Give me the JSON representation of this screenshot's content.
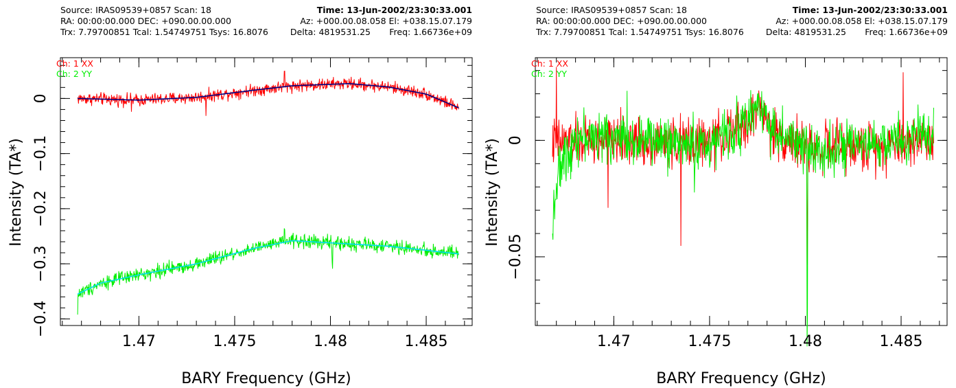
{
  "panels": [
    {
      "header": {
        "source": "Source: IRAS09539+0857 Scan: 18",
        "time": "Time: 13-Jun-2002/23:30:33.001",
        "radec": "RA: 00:00:00.000 DEC: +090.00.00.000",
        "azel": "Az: +000.00.08.058 El: +038.15.07.179",
        "trx": "Trx: 7.79700851 Tcal: 1.54749751 Tsys: 16.8076",
        "delta": "Delta: 4819531.25",
        "freq": "Freq: 1.66736e+09"
      },
      "chart_data": {
        "type": "line",
        "xlabel": "BARY Frequency (GHz)",
        "ylabel": "Intensity (TA*)",
        "xlim": [
          1.4659,
          1.4874
        ],
        "ylim": [
          -0.412,
          0.074
        ],
        "xticks": [
          1.47,
          1.475,
          1.48,
          1.485
        ],
        "xtick_labels": [
          "1.47",
          "1.475",
          "1.48",
          "1.485"
        ],
        "yticks": [
          0,
          -0.1,
          -0.2,
          -0.3,
          -0.4
        ],
        "ytick_labels": [
          "0",
          "−0.1",
          "−0.2",
          "−0.3",
          "−0.4"
        ],
        "legend": [
          "Ch: 1 XX",
          "Ch: 2 YY"
        ],
        "legend_position": "top-left",
        "series": [
          {
            "name": "Ch: 1 XX",
            "color": "#ff0000",
            "x_range": [
              1.4668,
              1.4867
            ],
            "baseline": [
              [
                1.4668,
                0.0
              ],
              [
                1.47,
                -0.003
              ],
              [
                1.473,
                0.002
              ],
              [
                1.476,
                0.015
              ],
              [
                1.478,
                0.023
              ],
              [
                1.481,
                0.027
              ],
              [
                1.483,
                0.021
              ],
              [
                1.485,
                0.008
              ],
              [
                1.4867,
                -0.017
              ]
            ],
            "noise": 0.008,
            "features": [
              {
                "x": 1.4776,
                "dy": 0.025
              },
              {
                "x": 1.4735,
                "dy": -0.032
              },
              {
                "x": 1.4696,
                "dy": -0.022
              }
            ]
          },
          {
            "name": "Ch: 2 YY",
            "color": "#00ee00",
            "x_range": [
              1.4668,
              1.4867
            ],
            "baseline": [
              [
                1.4668,
                -0.355
              ],
              [
                1.468,
                -0.335
              ],
              [
                1.47,
                -0.32
              ],
              [
                1.473,
                -0.3
              ],
              [
                1.476,
                -0.272
              ],
              [
                1.478,
                -0.258
              ],
              [
                1.48,
                -0.262
              ],
              [
                1.483,
                -0.268
              ],
              [
                1.4867,
                -0.282
              ]
            ],
            "noise": 0.009,
            "features": [
              {
                "x": 1.4668,
                "dy": -0.04
              },
              {
                "x": 1.4776,
                "dy": 0.025
              },
              {
                "x": 1.4801,
                "dy": -0.07
              },
              {
                "x": 1.4801,
                "dy": 0.03
              }
            ]
          },
          {
            "name": "",
            "color": "#000080",
            "x_range": [
              1.4668,
              1.4867
            ],
            "baseline": [
              [
                1.4668,
                0.0
              ],
              [
                1.47,
                -0.003
              ],
              [
                1.473,
                0.002
              ],
              [
                1.476,
                0.015
              ],
              [
                1.478,
                0.023
              ],
              [
                1.481,
                0.027
              ],
              [
                1.483,
                0.021
              ],
              [
                1.485,
                0.008
              ],
              [
                1.4867,
                -0.017
              ]
            ],
            "noise": 0,
            "features": []
          },
          {
            "name": "",
            "color": "#00ddee",
            "x_range": [
              1.4668,
              1.4867
            ],
            "baseline": [
              [
                1.4668,
                -0.355
              ],
              [
                1.468,
                -0.335
              ],
              [
                1.47,
                -0.32
              ],
              [
                1.473,
                -0.3
              ],
              [
                1.476,
                -0.272
              ],
              [
                1.478,
                -0.258
              ],
              [
                1.48,
                -0.262
              ],
              [
                1.483,
                -0.268
              ],
              [
                1.4867,
                -0.282
              ]
            ],
            "noise": 0,
            "features": []
          }
        ]
      }
    },
    {
      "header": {
        "source": "Source: IRAS09539+0857 Scan: 18",
        "time": "Time: 13-Jun-2002/23:30:33.001",
        "radec": "RA: 00:00:00.000 DEC: +090.00.00.000",
        "azel": "Az: +000.00.08.058 El: +038.15.07.179",
        "trx": "Trx: 7.79700851 Tcal: 1.54749751 Tsys: 16.8076",
        "delta": "Delta: 4819531.25",
        "freq": "Freq: 1.66736e+09"
      },
      "chart_data": {
        "type": "line",
        "xlabel": "BARY Frequency (GHz)",
        "ylabel": "Intensity (TA*)",
        "xlim": [
          1.4659,
          1.4874
        ],
        "ylim": [
          -0.0795,
          0.0355
        ],
        "xticks": [
          1.47,
          1.475,
          1.48,
          1.485
        ],
        "xtick_labels": [
          "1.47",
          "1.475",
          "1.48",
          "1.485"
        ],
        "yticks": [
          0,
          -0.05
        ],
        "ytick_labels": [
          "0",
          "−0.05"
        ],
        "legend": [
          "Ch: 1 XX",
          "Ch: 2 YY"
        ],
        "legend_position": "top-left",
        "series": [
          {
            "name": "Ch: 1 XX",
            "color": "#ff0000",
            "x_range": [
              1.4668,
              1.4867
            ],
            "baseline": [
              [
                1.4668,
                -0.001
              ],
              [
                1.47,
                0.0
              ],
              [
                1.475,
                -0.001
              ],
              [
                1.4772,
                0.008
              ],
              [
                1.4776,
                0.016
              ],
              [
                1.4782,
                0.004
              ],
              [
                1.48,
                -0.003
              ],
              [
                1.483,
                -0.003
              ],
              [
                1.4867,
                0.001
              ]
            ],
            "noise": 0.0075,
            "features": [
              {
                "x": 1.4735,
                "dy": -0.048
              },
              {
                "x": 1.467,
                "dy": 0.03
              },
              {
                "x": 1.4697,
                "dy": -0.035
              },
              {
                "x": 1.4851,
                "dy": 0.03
              },
              {
                "x": 1.4801,
                "dy": -0.04
              }
            ]
          },
          {
            "name": "Ch: 2 YY",
            "color": "#00ee00",
            "x_range": [
              1.4668,
              1.4867
            ],
            "baseline": [
              [
                1.4668,
                -0.03
              ],
              [
                1.4672,
                -0.012
              ],
              [
                1.468,
                0.002
              ],
              [
                1.47,
                0.001
              ],
              [
                1.475,
                -0.002
              ],
              [
                1.4772,
                0.01
              ],
              [
                1.4776,
                0.018
              ],
              [
                1.4782,
                0.005
              ],
              [
                1.48,
                -0.004
              ],
              [
                1.483,
                -0.003
              ],
              [
                1.4867,
                0.003
              ]
            ],
            "noise": 0.0075,
            "features": [
              {
                "x": 1.4801,
                "dy": -0.073
              },
              {
                "x": 1.4668,
                "dy": -0.015
              },
              {
                "x": 1.4707,
                "dy": 0.025
              },
              {
                "x": 1.4742,
                "dy": -0.025
              }
            ]
          }
        ]
      }
    }
  ]
}
